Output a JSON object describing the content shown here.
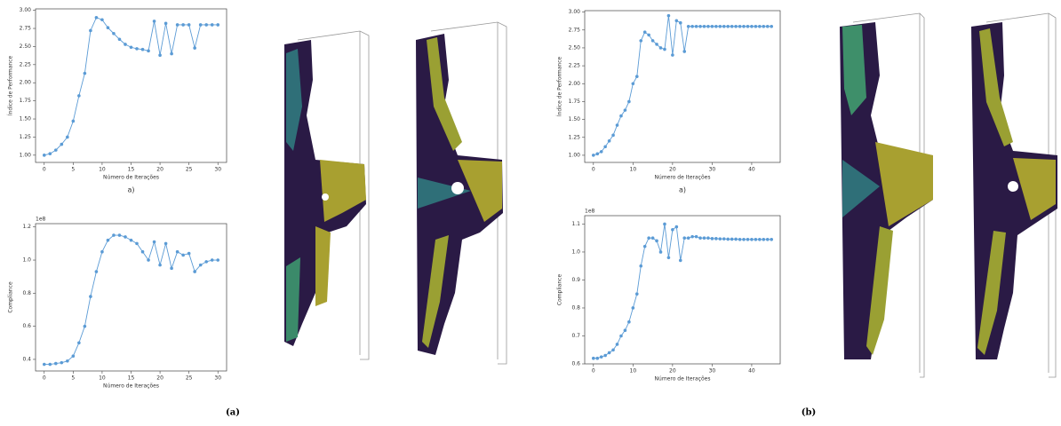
{
  "chart_data": [
    {
      "type": "line",
      "ylabel": "Índice de Performance",
      "xlabel": "Número de Iterações",
      "caption": "a)",
      "color": "#5b9bd5",
      "x": [
        0,
        1,
        2,
        3,
        4,
        5,
        6,
        7,
        8,
        9,
        10,
        11,
        12,
        13,
        14,
        15,
        16,
        17,
        18,
        19,
        20,
        21,
        22,
        23,
        24,
        25,
        26,
        27,
        28,
        29,
        30
      ],
      "values": [
        1.0,
        1.02,
        1.07,
        1.15,
        1.25,
        1.47,
        1.82,
        2.13,
        2.72,
        2.9,
        2.87,
        2.76,
        2.68,
        2.6,
        2.53,
        2.49,
        2.47,
        2.46,
        2.44,
        2.85,
        2.38,
        2.82,
        2.4,
        2.8,
        2.8,
        2.8,
        2.48,
        2.8,
        2.8,
        2.8,
        2.8
      ],
      "xlim": [
        -1.5,
        31.5
      ],
      "xticks": [
        0,
        5,
        10,
        15,
        20,
        25,
        30
      ],
      "ylim": [
        0.9,
        3.02
      ],
      "yticks": [
        {
          "value": 1.0,
          "label": "1.00"
        },
        {
          "value": 1.25,
          "label": "1.25"
        },
        {
          "value": 1.5,
          "label": "1.50"
        },
        {
          "value": 1.75,
          "label": "1.75"
        },
        {
          "value": 2.0,
          "label": "2.00"
        },
        {
          "value": 2.25,
          "label": "2.25"
        },
        {
          "value": 2.5,
          "label": "2.50"
        },
        {
          "value": 2.75,
          "label": "2.75"
        },
        {
          "value": 3.0,
          "label": "3.00"
        }
      ]
    },
    {
      "type": "line",
      "ylabel": "Compliance",
      "xlabel": "Número de Iterações",
      "offset_label": "1e8",
      "color": "#5b9bd5",
      "x": [
        0,
        1,
        2,
        3,
        4,
        5,
        6,
        7,
        8,
        9,
        10,
        11,
        12,
        13,
        14,
        15,
        16,
        17,
        18,
        19,
        20,
        21,
        22,
        23,
        24,
        25,
        26,
        27,
        28,
        29,
        30
      ],
      "values": [
        0.37,
        0.37,
        0.375,
        0.38,
        0.39,
        0.42,
        0.5,
        0.6,
        0.78,
        0.93,
        1.05,
        1.12,
        1.15,
        1.15,
        1.14,
        1.12,
        1.1,
        1.05,
        1.0,
        1.11,
        0.97,
        1.1,
        0.95,
        1.05,
        1.03,
        1.04,
        0.93,
        0.97,
        0.99,
        1.0,
        1.0
      ],
      "xlim": [
        -1.5,
        31.5
      ],
      "xticks": [
        0,
        5,
        10,
        15,
        20,
        25,
        30
      ],
      "ylim": [
        0.33,
        1.22
      ],
      "yticks": [
        0.4,
        0.6,
        0.8,
        {
          "value": 1.0,
          "label": "1.0"
        },
        1.2
      ]
    },
    {
      "type": "line",
      "ylabel": "Índice de Performance",
      "xlabel": "Número de Iterações",
      "caption": "a)",
      "color": "#5b9bd5",
      "x": [
        0,
        1,
        2,
        3,
        4,
        5,
        6,
        7,
        8,
        9,
        10,
        11,
        12,
        13,
        14,
        15,
        16,
        17,
        18,
        19,
        20,
        21,
        22,
        23,
        24,
        25,
        26,
        27,
        28,
        29,
        30,
        31,
        32,
        33,
        34,
        35,
        36,
        37,
        38,
        39,
        40,
        41,
        42,
        43,
        44,
        45
      ],
      "values": [
        1.0,
        1.02,
        1.05,
        1.12,
        1.2,
        1.28,
        1.42,
        1.55,
        1.63,
        1.75,
        2.0,
        2.1,
        2.6,
        2.72,
        2.68,
        2.6,
        2.55,
        2.5,
        2.48,
        2.95,
        2.4,
        2.88,
        2.85,
        2.45,
        2.8,
        2.8,
        2.8,
        2.8,
        2.8,
        2.8,
        2.8,
        2.8,
        2.8,
        2.8,
        2.8,
        2.8,
        2.8,
        2.8,
        2.8,
        2.8,
        2.8,
        2.8,
        2.8,
        2.8,
        2.8,
        2.8
      ],
      "xlim": [
        -2.2,
        47.2
      ],
      "xticks": [
        0,
        10,
        20,
        30,
        40
      ],
      "ylim": [
        0.9,
        3.02
      ],
      "yticks": [
        {
          "value": 1.0,
          "label": "1.00"
        },
        {
          "value": 1.25,
          "label": "1.25"
        },
        {
          "value": 1.5,
          "label": "1.50"
        },
        {
          "value": 1.75,
          "label": "1.75"
        },
        {
          "value": 2.0,
          "label": "2.00"
        },
        {
          "value": 2.25,
          "label": "2.25"
        },
        {
          "value": 2.5,
          "label": "2.50"
        },
        {
          "value": 2.75,
          "label": "2.75"
        },
        {
          "value": 3.0,
          "label": "3.00"
        }
      ]
    },
    {
      "type": "line",
      "ylabel": "Compliance",
      "xlabel": "Número de Iterações",
      "offset_label": "1e8",
      "color": "#5b9bd5",
      "x": [
        0,
        1,
        2,
        3,
        4,
        5,
        6,
        7,
        8,
        9,
        10,
        11,
        12,
        13,
        14,
        15,
        16,
        17,
        18,
        19,
        20,
        21,
        22,
        23,
        24,
        25,
        26,
        27,
        28,
        29,
        30,
        31,
        32,
        33,
        34,
        35,
        36,
        37,
        38,
        39,
        40,
        41,
        42,
        43,
        44,
        45
      ],
      "values": [
        0.62,
        0.62,
        0.625,
        0.63,
        0.64,
        0.65,
        0.67,
        0.7,
        0.72,
        0.75,
        0.8,
        0.85,
        0.95,
        1.02,
        1.05,
        1.05,
        1.04,
        1.0,
        1.1,
        0.98,
        1.08,
        1.09,
        0.97,
        1.05,
        1.05,
        1.055,
        1.055,
        1.05,
        1.05,
        1.05,
        1.048,
        1.048,
        1.047,
        1.047,
        1.046,
        1.046,
        1.046,
        1.045,
        1.045,
        1.045,
        1.045,
        1.045,
        1.045,
        1.045,
        1.045,
        1.045
      ],
      "xlim": [
        -2.2,
        47.2
      ],
      "xticks": [
        0,
        10,
        20,
        30,
        40
      ],
      "ylim": [
        0.6,
        1.13
      ],
      "yticks": [
        0.6,
        0.7,
        0.8,
        0.9,
        {
          "value": 1.0,
          "label": "1.0"
        },
        1.1
      ]
    }
  ],
  "captions": [
    "(a)",
    "(b)"
  ]
}
